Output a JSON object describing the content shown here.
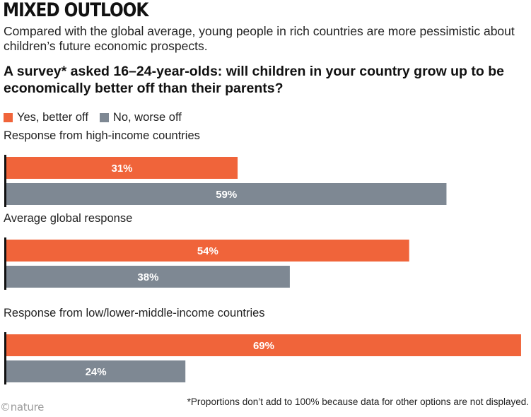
{
  "header": {
    "title": "MIXED OUTLOOK",
    "subtitle": "Compared with the global average, young people in rich countries are more pessimistic about children’s future economic prospects.",
    "question": "A survey* asked 16–24-year-olds: will children in your country grow up to be economically better off than their parents?"
  },
  "footer": {
    "footnote": "*Proportions don’t add to 100% because data for other options are not displayed.",
    "logo": "©nature"
  },
  "colors": {
    "yes": "#f0643a",
    "no": "#7e8893",
    "axis": "#111111"
  },
  "chart_data": {
    "type": "bar",
    "orientation": "horizontal",
    "categories": [
      "Response from high-income countries",
      "Average global response",
      "Response from low/lower-middle-income countries"
    ],
    "series": [
      {
        "name": "Yes, better off",
        "values": [
          31,
          54,
          69
        ]
      },
      {
        "name": "No, worse off",
        "values": [
          59,
          38,
          24
        ]
      }
    ],
    "data_labels": [
      [
        "31%",
        "54%",
        "69%"
      ],
      [
        "59%",
        "38%",
        "24%"
      ]
    ],
    "unit": "%",
    "xlim": [
      0,
      70
    ],
    "grid": false,
    "legend": "top-left"
  }
}
